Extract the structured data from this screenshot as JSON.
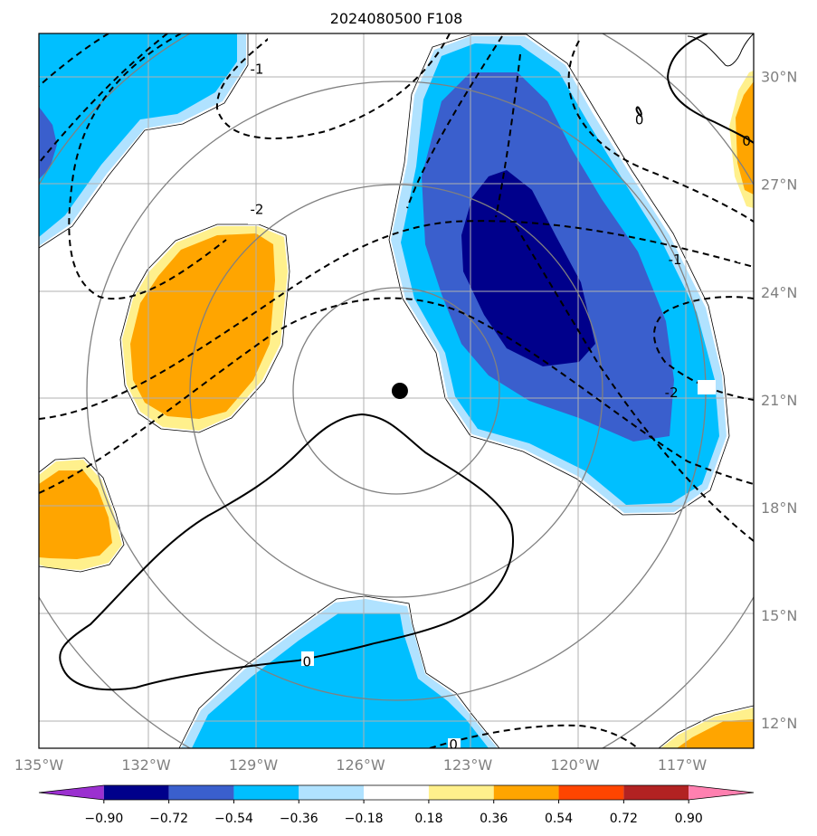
{
  "chart_data": {
    "type": "contour_map",
    "title": "2024080500 F108",
    "x_tick_labels": [
      "135°W",
      "132°W",
      "129°W",
      "126°W",
      "123°W",
      "120°W",
      "117°W"
    ],
    "x_ticks_deg": [
      -135,
      -132,
      -129,
      -126,
      -123,
      -120,
      -117
    ],
    "y_tick_labels": [
      "12°N",
      "15°N",
      "18°N",
      "21°N",
      "24°N",
      "27°N",
      "30°N"
    ],
    "y_ticks_deg": [
      12,
      15,
      18,
      21,
      24,
      27,
      30
    ],
    "xlim": [
      -135,
      -115
    ],
    "ylim": [
      11.3,
      31.2
    ],
    "gridlines": true,
    "storm_center": {
      "lon": -124.9,
      "lat": 21.25
    },
    "range_rings_deg": [
      3,
      6,
      9,
      12
    ],
    "colorbar": {
      "levels": [
        "−0.90",
        "−0.72",
        "−0.54",
        "−0.36",
        "−0.18",
        "0.18",
        "0.36",
        "0.54",
        "0.72",
        "0.90"
      ],
      "colors": [
        "#9b30d0",
        "#00008b",
        "#3a5fcd",
        "#00bfff",
        "#b0e2ff",
        "#ffffff",
        "#fff08c",
        "#ffa500",
        "#ff4500",
        "#b22222",
        "#ff80b0"
      ],
      "extend": "both"
    },
    "contour_labels": [
      {
        "text": "-2",
        "lon": -128.9,
        "lat": 26.3
      },
      {
        "text": "-1",
        "lon": -117.2,
        "lat": 24.9
      },
      {
        "text": "-2",
        "lon": -117.3,
        "lat": 21.2
      },
      {
        "text": "-1",
        "lon": -128.9,
        "lat": 30.2
      },
      {
        "text": "0",
        "lon": -127.5,
        "lat": 13.7
      },
      {
        "text": "0",
        "lon": -123.4,
        "lat": 11.4
      },
      {
        "text": "0",
        "lon": -118.2,
        "lat": 28.8
      },
      {
        "text": "0",
        "lon": -115.2,
        "lat": 28.2
      }
    ]
  }
}
